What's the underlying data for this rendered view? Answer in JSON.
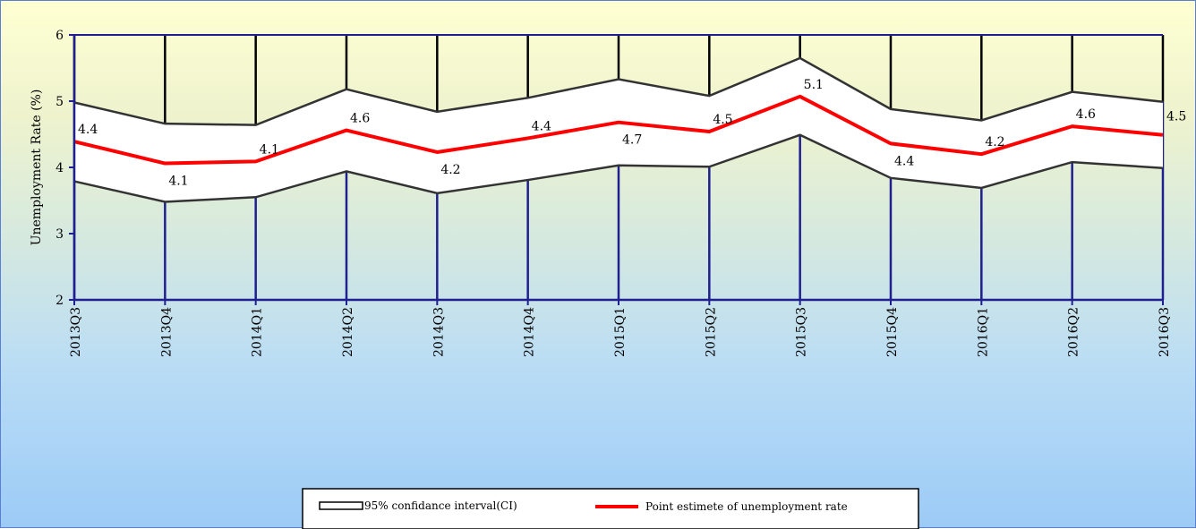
{
  "chart_data": {
    "type": "line",
    "title": "",
    "xlabel": "",
    "ylabel": "Unemployment Rate (%)",
    "ylim": [
      2,
      6
    ],
    "yticks": [
      2,
      3,
      4,
      5,
      6
    ],
    "grid": "vertical",
    "categories": [
      "2013Q3",
      "2013Q4",
      "2014Q1",
      "2014Q2",
      "2014Q3",
      "2014Q4",
      "2015Q1",
      "2015Q2",
      "2015Q3",
      "2015Q4",
      "2016Q1",
      "2016Q2",
      "2016Q3"
    ],
    "series": [
      {
        "name": "95% confidance interval(CI)",
        "role": "upper_bound",
        "values": [
          4.98,
          4.66,
          4.64,
          5.18,
          4.84,
          5.05,
          5.33,
          5.08,
          5.65,
          4.88,
          4.71,
          5.14,
          4.99
        ]
      },
      {
        "name": "95% confidance interval(CI)",
        "role": "lower_bound",
        "values": [
          3.79,
          3.48,
          3.55,
          3.94,
          3.61,
          3.81,
          4.03,
          4.01,
          4.49,
          3.84,
          3.69,
          4.08,
          3.99
        ]
      },
      {
        "name": "Point estimete of unemployment rate",
        "role": "point_estimate",
        "values": [
          4.39,
          4.06,
          4.09,
          4.56,
          4.23,
          4.44,
          4.68,
          4.54,
          5.07,
          4.36,
          4.2,
          4.62,
          4.49
        ]
      }
    ],
    "data_labels": [
      "4.4",
      "4.1",
      "4.1",
      "4.6",
      "4.2",
      "4.4",
      "4.7",
      "4.5",
      "5.1",
      "4.4",
      "4.2",
      "4.6",
      "4.5"
    ],
    "legend": {
      "position": "bottom-center"
    },
    "colors": {
      "ci": "#333333",
      "point": "#ff0000",
      "gridline": "#1f1f8f"
    }
  }
}
